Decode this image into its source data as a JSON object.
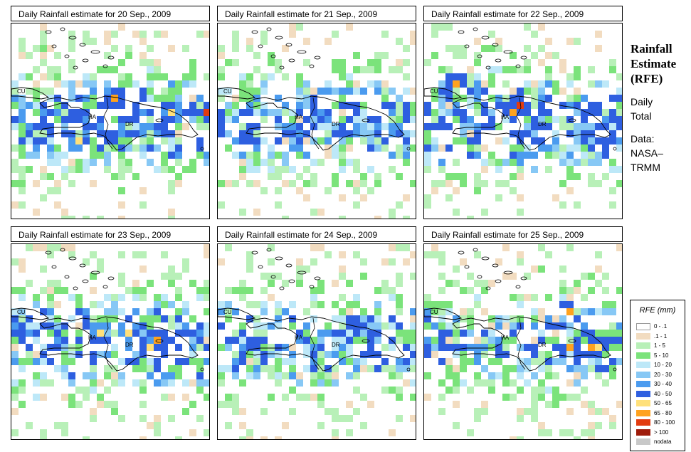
{
  "panels": [
    {
      "title": "Daily Rainfall estimate for  20 Sep., 2009",
      "seed": 11,
      "intensity": 0.55,
      "hot": [
        [
          14,
          10,
          9
        ],
        [
          27,
          12,
          10
        ],
        [
          22,
          12,
          8
        ],
        [
          9,
          16,
          8
        ]
      ]
    },
    {
      "title": "Daily Rainfall estimate for  21 Sep., 2009",
      "seed": 23,
      "intensity": 0.5,
      "hot": [
        [
          13,
          12,
          7
        ],
        [
          15,
          13,
          6
        ],
        [
          22,
          14,
          6
        ]
      ]
    },
    {
      "title": "Daily Rainfall estimate for  22 Sep., 2009",
      "seed": 37,
      "intensity": 0.6,
      "hot": [
        [
          4,
          8,
          9
        ],
        [
          13,
          11,
          10
        ],
        [
          12,
          12,
          9
        ],
        [
          15,
          14,
          7
        ],
        [
          22,
          15,
          7
        ]
      ]
    },
    {
      "title": "Daily Rainfall estimate for  23 Sep., 2009",
      "seed": 41,
      "intensity": 0.55,
      "hot": [
        [
          12,
          12,
          8
        ],
        [
          16,
          12,
          8
        ],
        [
          20,
          13,
          9
        ],
        [
          19,
          14,
          8
        ],
        [
          2,
          12,
          6
        ]
      ]
    },
    {
      "title": "Daily Rainfall estimate for  24 Sep., 2009",
      "seed": 53,
      "intensity": 0.5,
      "hot": [
        [
          19,
          11,
          7
        ],
        [
          21,
          12,
          7
        ],
        [
          17,
          14,
          6
        ]
      ]
    },
    {
      "title": "Daily Rainfall estimate for  25 Sep., 2009",
      "seed": 67,
      "intensity": 0.45,
      "hot": [
        [
          20,
          9,
          9
        ],
        [
          20,
          14,
          9
        ],
        [
          23,
          14,
          9
        ],
        [
          24,
          14,
          8
        ]
      ]
    }
  ],
  "place_labels": {
    "cu": "CU",
    "ha": "HA",
    "dr": "DR"
  },
  "sidebar": {
    "title_line1": "Rainfall",
    "title_line2": "Estimate",
    "title_line3": "(RFE)",
    "daily_line1": "Daily",
    "daily_line2": "Total",
    "data_line1": "Data:",
    "data_line2": "NASA–",
    "data_line3": "TRMM"
  },
  "legend": {
    "title": "RFE (mm)",
    "classes": [
      {
        "label": "0 - .1",
        "color": "#ffffff"
      },
      {
        "label": ".1 - 1",
        "color": "#f2dcc0"
      },
      {
        "label": "1 - 5",
        "color": "#b8f0b8"
      },
      {
        "label": "5 - 10",
        "color": "#7be37b"
      },
      {
        "label": "10 - 20",
        "color": "#bde8f8"
      },
      {
        "label": "20 - 30",
        "color": "#87c8f5"
      },
      {
        "label": "30 - 40",
        "color": "#4b9bef"
      },
      {
        "label": "40 - 50",
        "color": "#2e5fe0"
      },
      {
        "label": "50 - 65",
        "color": "#ffe07a"
      },
      {
        "label": "65 - 80",
        "color": "#ffa21e"
      },
      {
        "label": "80 - 100",
        "color": "#e23b0f"
      },
      {
        "label": "> 100",
        "color": "#9e1b0a"
      },
      {
        "label": "nodata",
        "color": "#c8c8c8"
      }
    ]
  }
}
